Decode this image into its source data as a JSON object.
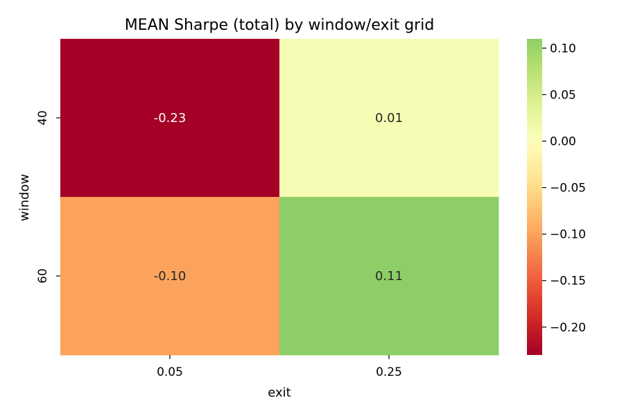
{
  "chart_data": {
    "type": "heatmap",
    "title": "MEAN Sharpe (total) by window/exit grid",
    "xlabel": "exit",
    "ylabel": "window",
    "x_categories": [
      "0.05",
      "0.25"
    ],
    "y_categories": [
      "40",
      "60"
    ],
    "values": [
      [
        -0.23,
        0.01
      ],
      [
        -0.1,
        0.11
      ]
    ],
    "cell_labels": [
      [
        "-0.23",
        "0.01"
      ],
      [
        "-0.10",
        "0.11"
      ]
    ],
    "colormap": "RdYlGn",
    "vmin": -0.23,
    "vmax": 0.11,
    "colorbar_ticks": [
      0.1,
      0.05,
      0.0,
      -0.05,
      -0.1,
      -0.15,
      -0.2
    ],
    "colorbar_tick_labels": [
      "0.10",
      "0.05",
      "0.00",
      "−0.05",
      "−0.10",
      "−0.15",
      "−0.20"
    ]
  }
}
